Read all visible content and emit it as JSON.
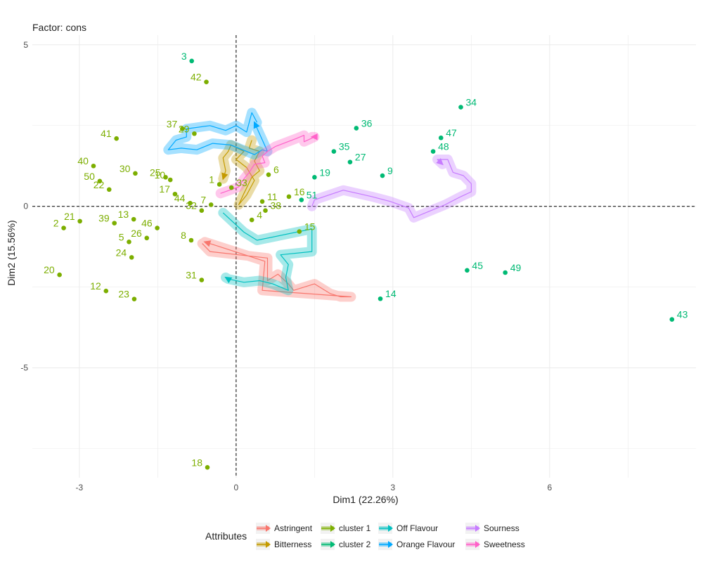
{
  "chart_data": {
    "type": "scatter",
    "title": "Factor: cons",
    "xlabel": "Dim1 (22.26%)",
    "ylabel": "Dim2 (15.56%)",
    "xlim": [
      -3.9,
      8.8
    ],
    "ylim": [
      -8.4,
      5.3
    ],
    "x_ticks": [
      -3,
      0,
      3,
      6
    ],
    "x_tick_labels": [
      "-3",
      "0",
      "3",
      "6"
    ],
    "y_ticks": [
      5,
      0,
      -5
    ],
    "y_tick_labels": [
      "5",
      "0",
      "-5"
    ],
    "grid": true,
    "reference_lines": {
      "x": 0,
      "y": 0,
      "style": "dashed"
    },
    "legend_title": "Attributes",
    "legend": [
      {
        "name": "Astringent",
        "color": "#F8766D"
      },
      {
        "name": "Bitterness",
        "color": "#C49A00"
      },
      {
        "name": "cluster 1",
        "color": "#7CAE00"
      },
      {
        "name": "cluster 2",
        "color": "#00BA74"
      },
      {
        "name": "Off Flavour",
        "color": "#00C0C0"
      },
      {
        "name": "Orange Flavour",
        "color": "#00A9FF"
      },
      {
        "name": "Sourness",
        "color": "#C77CFF"
      },
      {
        "name": "Sweetness",
        "color": "#FF61C9"
      }
    ],
    "points": [
      {
        "label": "3",
        "x": -0.85,
        "y": 4.5,
        "cluster": "cluster 2"
      },
      {
        "label": "42",
        "x": -0.57,
        "y": 3.85,
        "cluster": "cluster 1"
      },
      {
        "label": "37",
        "x": -1.03,
        "y": 2.4,
        "cluster": "cluster 1"
      },
      {
        "label": "41",
        "x": -2.29,
        "y": 2.1,
        "cluster": "cluster 1"
      },
      {
        "label": "29",
        "x": -0.8,
        "y": 2.25,
        "cluster": "cluster 1"
      },
      {
        "label": "40",
        "x": -2.73,
        "y": 1.25,
        "cluster": "cluster 1"
      },
      {
        "label": "30",
        "x": -1.93,
        "y": 1.02,
        "cluster": "cluster 1"
      },
      {
        "label": "25",
        "x": -1.35,
        "y": 0.9,
        "cluster": "cluster 1"
      },
      {
        "label": "50",
        "x": -2.61,
        "y": 0.78,
        "cluster": "cluster 1"
      },
      {
        "label": "1",
        "x": -0.32,
        "y": 0.68,
        "cluster": "cluster 1"
      },
      {
        "label": "10",
        "x": -1.26,
        "y": 0.82,
        "cluster": "cluster 1"
      },
      {
        "label": "6",
        "x": 0.62,
        "y": 0.98,
        "cluster": "cluster 1"
      },
      {
        "label": "22",
        "x": -2.43,
        "y": 0.52,
        "cluster": "cluster 1"
      },
      {
        "label": "33",
        "x": -0.09,
        "y": 0.58,
        "cluster": "cluster 1"
      },
      {
        "label": "11",
        "x": 0.5,
        "y": 0.15,
        "cluster": "cluster 1"
      },
      {
        "label": "17",
        "x": -1.17,
        "y": 0.38,
        "cluster": "cluster 1"
      },
      {
        "label": "7",
        "x": -0.48,
        "y": 0.05,
        "cluster": "cluster 1"
      },
      {
        "label": "44",
        "x": -0.88,
        "y": 0.1,
        "cluster": "cluster 1"
      },
      {
        "label": "32",
        "x": -0.66,
        "y": -0.13,
        "cluster": "cluster 1"
      },
      {
        "label": "16",
        "x": 1.01,
        "y": 0.3,
        "cluster": "cluster 1"
      },
      {
        "label": "19",
        "x": 1.5,
        "y": 0.9,
        "cluster": "cluster 2"
      },
      {
        "label": "51",
        "x": 1.25,
        "y": 0.2,
        "cluster": "cluster 2"
      },
      {
        "label": "4",
        "x": 0.3,
        "y": -0.42,
        "cluster": "cluster 1"
      },
      {
        "label": "38",
        "x": 0.56,
        "y": -0.13,
        "cluster": "cluster 1"
      },
      {
        "label": "2",
        "x": -3.3,
        "y": -0.67,
        "cluster": "cluster 1"
      },
      {
        "label": "21",
        "x": -2.99,
        "y": -0.46,
        "cluster": "cluster 1"
      },
      {
        "label": "39",
        "x": -2.33,
        "y": -0.52,
        "cluster": "cluster 1"
      },
      {
        "label": "46",
        "x": -1.51,
        "y": -0.67,
        "cluster": "cluster 1"
      },
      {
        "label": "13",
        "x": -1.96,
        "y": -0.4,
        "cluster": "cluster 1"
      },
      {
        "label": "8",
        "x": -0.86,
        "y": -1.05,
        "cluster": "cluster 1"
      },
      {
        "label": "15",
        "x": 1.21,
        "y": -0.78,
        "cluster": "cluster 1"
      },
      {
        "label": "5",
        "x": -2.05,
        "y": -1.1,
        "cluster": "cluster 1"
      },
      {
        "label": "26",
        "x": -1.71,
        "y": -0.98,
        "cluster": "cluster 1"
      },
      {
        "label": "24",
        "x": -2.0,
        "y": -1.58,
        "cluster": "cluster 1"
      },
      {
        "label": "20",
        "x": -3.38,
        "y": -2.12,
        "cluster": "cluster 1"
      },
      {
        "label": "31",
        "x": -0.66,
        "y": -2.28,
        "cluster": "cluster 1"
      },
      {
        "label": "12",
        "x": -2.49,
        "y": -2.62,
        "cluster": "cluster 1"
      },
      {
        "label": "23",
        "x": -1.95,
        "y": -2.87,
        "cluster": "cluster 1"
      },
      {
        "label": "18",
        "x": -0.55,
        "y": -8.08,
        "cluster": "cluster 1"
      },
      {
        "label": "34",
        "x": 4.3,
        "y": 3.07,
        "cluster": "cluster 2"
      },
      {
        "label": "36",
        "x": 2.3,
        "y": 2.42,
        "cluster": "cluster 2"
      },
      {
        "label": "47",
        "x": 3.92,
        "y": 2.12,
        "cluster": "cluster 2"
      },
      {
        "label": "35",
        "x": 1.87,
        "y": 1.7,
        "cluster": "cluster 2"
      },
      {
        "label": "48",
        "x": 3.77,
        "y": 1.7,
        "cluster": "cluster 2"
      },
      {
        "label": "27",
        "x": 2.18,
        "y": 1.37,
        "cluster": "cluster 2"
      },
      {
        "label": "9",
        "x": 2.8,
        "y": 0.95,
        "cluster": "cluster 2"
      },
      {
        "label": "45",
        "x": 4.42,
        "y": -1.98,
        "cluster": "cluster 2"
      },
      {
        "label": "49",
        "x": 5.15,
        "y": -2.05,
        "cluster": "cluster 2"
      },
      {
        "label": "14",
        "x": 2.76,
        "y": -2.86,
        "cluster": "cluster 2"
      },
      {
        "label": "43",
        "x": 8.34,
        "y": -3.5,
        "cluster": "cluster 2"
      }
    ],
    "trajectories": [
      {
        "name": "Astringent",
        "path": [
          [
            -0.65,
            -1.15
          ],
          [
            -0.5,
            -1.4
          ],
          [
            0.6,
            -1.6
          ],
          [
            0.6,
            -2.3
          ],
          [
            0.8,
            -2.1
          ],
          [
            1.0,
            -2.4
          ],
          [
            1.1,
            -2.6
          ],
          [
            1.5,
            -2.4
          ],
          [
            1.8,
            -2.7
          ],
          [
            2.0,
            -2.8
          ],
          [
            2.2,
            -2.8
          ],
          [
            0.5,
            -2.6
          ],
          [
            0.55,
            -1.7
          ],
          [
            -0.6,
            -1.1
          ]
        ]
      },
      {
        "name": "Bitterness",
        "path": [
          [
            0.3,
            2.05
          ],
          [
            0.25,
            1.8
          ],
          [
            0.45,
            1.7
          ],
          [
            0.35,
            1.4
          ],
          [
            0.45,
            1.1
          ],
          [
            0.3,
            0.9
          ],
          [
            0.15,
            0.4
          ],
          [
            0.05,
            0.05
          ],
          [
            0.2,
            0.35
          ],
          [
            0.35,
            0.8
          ],
          [
            0.2,
            1.2
          ],
          [
            0.0,
            1.45
          ],
          [
            0.15,
            1.7
          ],
          [
            -0.1,
            1.9
          ],
          [
            -0.15,
            1.7
          ],
          [
            -0.25,
            1.5
          ],
          [
            -0.2,
            1.1
          ],
          [
            -0.25,
            0.85
          ]
        ]
      },
      {
        "name": "Off Flavour",
        "path": [
          [
            -0.25,
            -0.2
          ],
          [
            0.15,
            -0.8
          ],
          [
            0.4,
            -1.05
          ],
          [
            1.45,
            -0.7
          ],
          [
            1.45,
            -1.4
          ],
          [
            0.85,
            -1.5
          ],
          [
            1.0,
            -1.8
          ],
          [
            1.0,
            -1.8
          ],
          [
            0.95,
            -2.2
          ],
          [
            1.0,
            -2.6
          ],
          [
            0.7,
            -2.4
          ],
          [
            0.45,
            -2.3
          ],
          [
            0.15,
            -2.35
          ],
          [
            -0.15,
            -2.25
          ],
          [
            -0.2,
            -2.2
          ]
        ]
      },
      {
        "name": "Orange Flavour",
        "path": [
          [
            0.4,
            2.6
          ],
          [
            0.3,
            2.9
          ],
          [
            0.25,
            2.6
          ],
          [
            0.2,
            2.3
          ],
          [
            0.0,
            2.5
          ],
          [
            -0.2,
            2.35
          ],
          [
            -0.5,
            2.5
          ],
          [
            -0.95,
            2.4
          ],
          [
            -0.95,
            2.15
          ],
          [
            -1.15,
            2.05
          ],
          [
            -1.3,
            1.75
          ],
          [
            -1.05,
            1.8
          ],
          [
            -0.75,
            1.75
          ],
          [
            -0.45,
            1.95
          ],
          [
            -0.1,
            1.9
          ],
          [
            0.35,
            1.6
          ],
          [
            0.5,
            1.75
          ],
          [
            0.6,
            1.7
          ],
          [
            0.35,
            2.6
          ]
        ]
      },
      {
        "name": "Sourness",
        "path": [
          [
            1.45,
            0.0
          ],
          [
            1.5,
            0.2
          ],
          [
            2.05,
            0.5
          ],
          [
            2.6,
            0.3
          ],
          [
            2.95,
            0.15
          ],
          [
            3.3,
            -0.05
          ],
          [
            3.4,
            -0.35
          ],
          [
            4.0,
            0.05
          ],
          [
            4.3,
            0.3
          ],
          [
            4.5,
            0.45
          ],
          [
            4.5,
            0.7
          ],
          [
            4.35,
            0.95
          ],
          [
            4.15,
            1.05
          ],
          [
            4.05,
            1.45
          ],
          [
            3.85,
            1.45
          ],
          [
            3.95,
            1.3
          ]
        ]
      },
      {
        "name": "Sweetness",
        "path": [
          [
            -0.3,
            0.4
          ],
          [
            0.05,
            0.6
          ],
          [
            0.15,
            0.85
          ],
          [
            0.25,
            1.05
          ],
          [
            0.35,
            1.3
          ],
          [
            0.55,
            1.35
          ],
          [
            0.5,
            1.55
          ],
          [
            0.6,
            1.7
          ],
          [
            0.75,
            1.85
          ],
          [
            1.15,
            2.1
          ],
          [
            1.3,
            2.2
          ],
          [
            1.3,
            2.0
          ],
          [
            1.5,
            2.15
          ],
          [
            1.45,
            2.15
          ]
        ]
      }
    ]
  }
}
